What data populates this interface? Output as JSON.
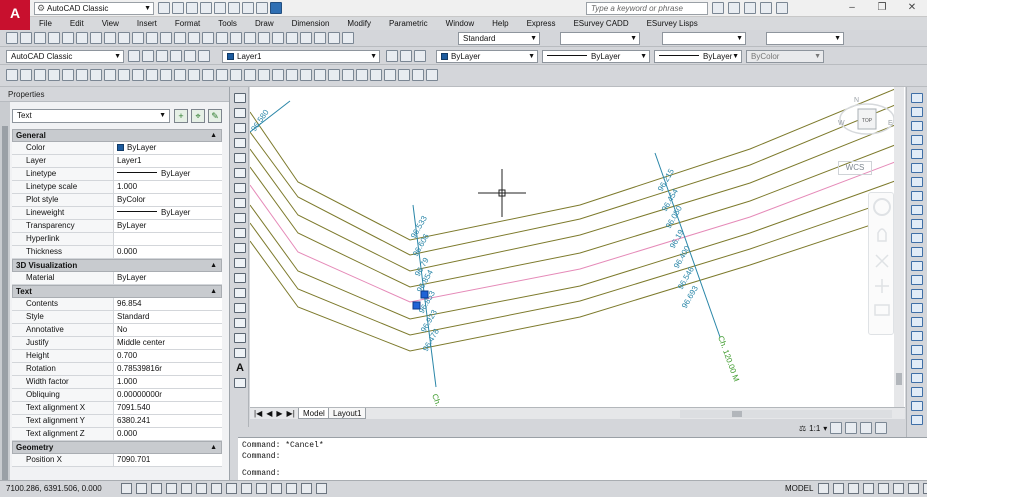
{
  "titlebar": {
    "workspace": "AutoCAD Classic",
    "search_placeholder": "Type a keyword or phrase"
  },
  "menu": [
    "File",
    "Edit",
    "View",
    "Insert",
    "Format",
    "Tools",
    "Draw",
    "Dimension",
    "Modify",
    "Parametric",
    "Window",
    "Help",
    "Express",
    "ESurvey CADD",
    "ESurvey Lisps"
  ],
  "toolbar2": {
    "text_style": "Standard"
  },
  "toolbar3": {
    "workspace": "AutoCAD Classic",
    "layer": "Layer1",
    "color": "ByLayer",
    "linetype": "ByLayer",
    "lineweight": "ByLayer",
    "plotstyle": "ByColor"
  },
  "properties": {
    "title": "Properties",
    "selector": "Text",
    "sections": [
      {
        "name": "General",
        "rows": [
          {
            "k": "Color",
            "v": "ByLayer"
          },
          {
            "k": "Layer",
            "v": "Layer1"
          },
          {
            "k": "Linetype",
            "v": "ByLayer"
          },
          {
            "k": "Linetype scale",
            "v": "1.000"
          },
          {
            "k": "Plot style",
            "v": "ByColor"
          },
          {
            "k": "Lineweight",
            "v": "ByLayer"
          },
          {
            "k": "Transparency",
            "v": "ByLayer"
          },
          {
            "k": "Hyperlink",
            "v": ""
          },
          {
            "k": "Thickness",
            "v": "0.000"
          }
        ]
      },
      {
        "name": "3D Visualization",
        "rows": [
          {
            "k": "Material",
            "v": "ByLayer"
          }
        ]
      },
      {
        "name": "Text",
        "rows": [
          {
            "k": "Contents",
            "v": "96.854"
          },
          {
            "k": "Style",
            "v": "Standard"
          },
          {
            "k": "Annotative",
            "v": "No"
          },
          {
            "k": "Justify",
            "v": "Middle center"
          },
          {
            "k": "Height",
            "v": "0.700"
          },
          {
            "k": "Rotation",
            "v": "0.78539816r"
          },
          {
            "k": "Width factor",
            "v": "1.000"
          },
          {
            "k": "Obliquing",
            "v": "0.00000000r"
          },
          {
            "k": "Text alignment X",
            "v": "7091.540"
          },
          {
            "k": "Text alignment Y",
            "v": "6380.241"
          },
          {
            "k": "Text alignment Z",
            "v": "0.000"
          }
        ]
      },
      {
        "name": "Geometry",
        "rows": [
          {
            "k": "Position X",
            "v": "7090.701"
          }
        ]
      }
    ]
  },
  "drawing": {
    "labels_left": [
      "96.533",
      "96.606",
      "96.79",
      "96.854",
      "96.853",
      "96.923",
      "96.478"
    ],
    "labels_right": [
      "96.215",
      "96.454",
      "96.050",
      "96.19",
      "96.400",
      "96.546",
      "96.693"
    ],
    "chainage_right": "Ch. 120.00 M",
    "chainage_left": "Ch.",
    "top_label": "96.580",
    "viewcube": {
      "top": "TOP",
      "north": "N",
      "west": "W",
      "east": "E"
    },
    "wcs": "WCS",
    "colors": {
      "contour": "#7d7a2c",
      "pink": "#e58ab8",
      "section": "#2a86a8",
      "label": "#2a86a8",
      "chainage": "#3c9a2a"
    }
  },
  "tabs": [
    "Model",
    "Layout1"
  ],
  "annotation": {
    "scale": "1:1"
  },
  "command": [
    "Command: *Cancel*",
    "Command:",
    "Command:"
  ],
  "status": {
    "coords": "7100.286, 6391.506, 0.000",
    "model": "MODEL"
  }
}
